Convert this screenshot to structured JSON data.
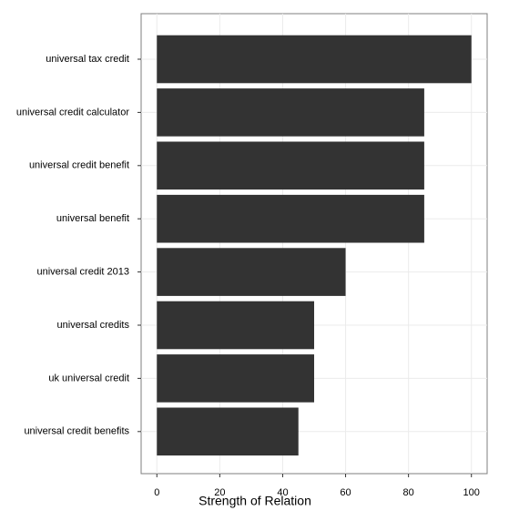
{
  "chart_data": {
    "type": "bar",
    "orientation": "horizontal",
    "x_label": "Strength of Relation",
    "categories": [
      "universal tax credit",
      "universal credit calculator",
      "universal credit benefit",
      "universal benefit",
      "universal credit 2013",
      "universal credits",
      "uk universal credit",
      "universal credit benefits"
    ],
    "values": [
      100,
      85,
      85,
      85,
      60,
      50,
      50,
      45
    ],
    "color": "#333333",
    "xlim": [
      -5,
      105
    ],
    "xticks": [
      0,
      20,
      40,
      60,
      80,
      100
    ],
    "grid": true
  }
}
